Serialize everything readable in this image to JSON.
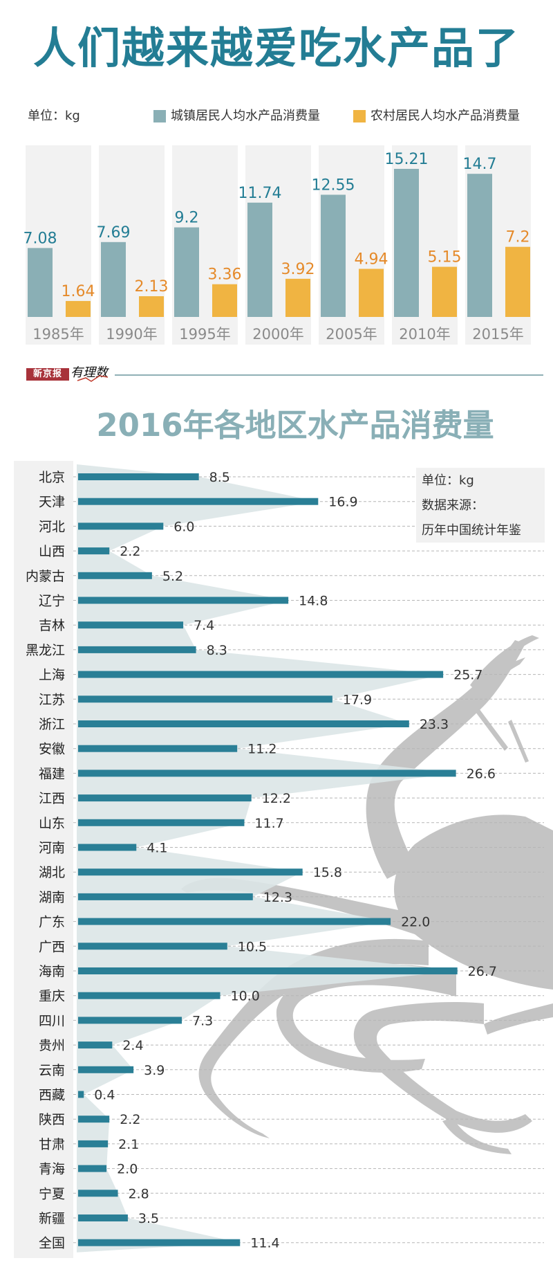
{
  "header": {
    "title": "人们越来越爱吃水产品了",
    "unit_label": "单位：kg",
    "legend": [
      {
        "label": "城镇居民人均水产品消费量",
        "color": "#8aafb5"
      },
      {
        "label": "农村居民人均水产品消费量",
        "color": "#f0b442"
      }
    ]
  },
  "branding": {
    "paper": "新京报",
    "column": "有理数"
  },
  "section2": {
    "title": "2016年各地区水产品消费量",
    "unit_label": "单位：kg",
    "source_label": "数据来源：",
    "source_value": "历年中国统计年鉴"
  },
  "colors": {
    "title": "#237d94",
    "urban": "#8aafb5",
    "rural": "#f0b442",
    "urban_label": "#237d94",
    "rural_label": "#e58a2a",
    "panel_bg": "#f2f2f2",
    "bar": "#2a7f96",
    "area": "#dbe5e7",
    "crab": "#c4c4c4"
  },
  "chart_data": [
    {
      "type": "bar",
      "title": "人们越来越爱吃水产品了",
      "ylabel": "单位：kg",
      "categories": [
        "1985年",
        "1990年",
        "1995年",
        "2000年",
        "2005年",
        "2010年",
        "2015年"
      ],
      "series": [
        {
          "name": "城镇居民人均水产品消费量",
          "values": [
            7.08,
            7.69,
            9.2,
            11.74,
            12.55,
            15.21,
            14.7
          ],
          "labels": [
            "7.08",
            "7.69",
            "9.2",
            "11.74",
            "12.55",
            "15.21",
            "14.7"
          ]
        },
        {
          "name": "农村居民人均水产品消费量",
          "values": [
            1.64,
            2.13,
            3.36,
            3.92,
            4.94,
            5.15,
            7.2
          ],
          "labels": [
            "1.64",
            "2.13",
            "3.36",
            "3.92",
            "4.94",
            "5.15",
            "7.2"
          ]
        }
      ],
      "ylim": [
        0,
        20
      ],
      "grid": false,
      "legend": "top"
    },
    {
      "type": "bar",
      "orientation": "horizontal",
      "title": "2016年各地区水产品消费量",
      "unit": "单位：kg",
      "source": "数据来源：历年中国统计年鉴",
      "categories": [
        "北京",
        "天津",
        "河北",
        "山西",
        "内蒙古",
        "辽宁",
        "吉林",
        "黑龙江",
        "上海",
        "江苏",
        "浙江",
        "安徽",
        "福建",
        "江西",
        "山东",
        "河南",
        "湖北",
        "湖南",
        "广东",
        "广西",
        "海南",
        "重庆",
        "四川",
        "贵州",
        "云南",
        "西藏",
        "陕西",
        "甘肃",
        "青海",
        "宁夏",
        "新疆",
        "全国"
      ],
      "values": [
        8.5,
        16.9,
        6.0,
        2.2,
        5.2,
        14.8,
        7.4,
        8.3,
        25.7,
        17.9,
        23.3,
        11.2,
        26.6,
        12.2,
        11.7,
        4.1,
        15.8,
        12.3,
        22.0,
        10.5,
        26.7,
        10.0,
        7.3,
        2.4,
        3.9,
        0.4,
        2.2,
        2.1,
        2.0,
        2.8,
        3.5,
        11.4
      ],
      "labels": [
        "8.5",
        "16.9",
        "6.0",
        "2.2",
        "5.2",
        "14.8",
        "7.4",
        "8.3",
        "25.7",
        "17.9",
        "23.3",
        "11.2",
        "26.6",
        "12.2",
        "11.7",
        "4.1",
        "15.8",
        "12.3",
        "22.0",
        "10.5",
        "26.7",
        "10.0",
        "7.3",
        "2.4",
        "3.9",
        "0.4",
        "2.2",
        "2.1",
        "2.0",
        "2.8",
        "3.5",
        "11.4"
      ],
      "xlim": [
        0,
        32
      ],
      "grid": "dashed-horizontal"
    }
  ]
}
